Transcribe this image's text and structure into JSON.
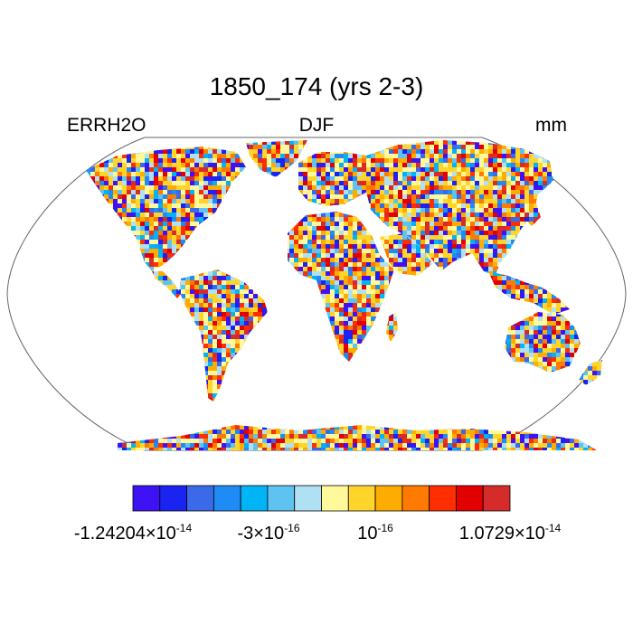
{
  "title": "1850_174 (yrs 2-3)",
  "left_label": "ERRH2O",
  "center_label": "DJF",
  "right_label": "mm",
  "colorbar": {
    "colors": [
      "#3f12f5",
      "#1a23f0",
      "#3a6ae8",
      "#1f8cf5",
      "#00b4f6",
      "#5ec3f0",
      "#b0e0f3",
      "#fff99c",
      "#ffd42b",
      "#ffac00",
      "#ff7a00",
      "#ff2e00",
      "#e30000",
      "#d62b2b"
    ],
    "tick_labels": [
      {
        "base": "-1.24204×10",
        "exp": "-14"
      },
      {
        "base": "-3×10",
        "exp": "-16"
      },
      {
        "base": "10",
        "exp": "-16"
      },
      {
        "base": "1.0729×10",
        "exp": "-14"
      }
    ]
  }
}
